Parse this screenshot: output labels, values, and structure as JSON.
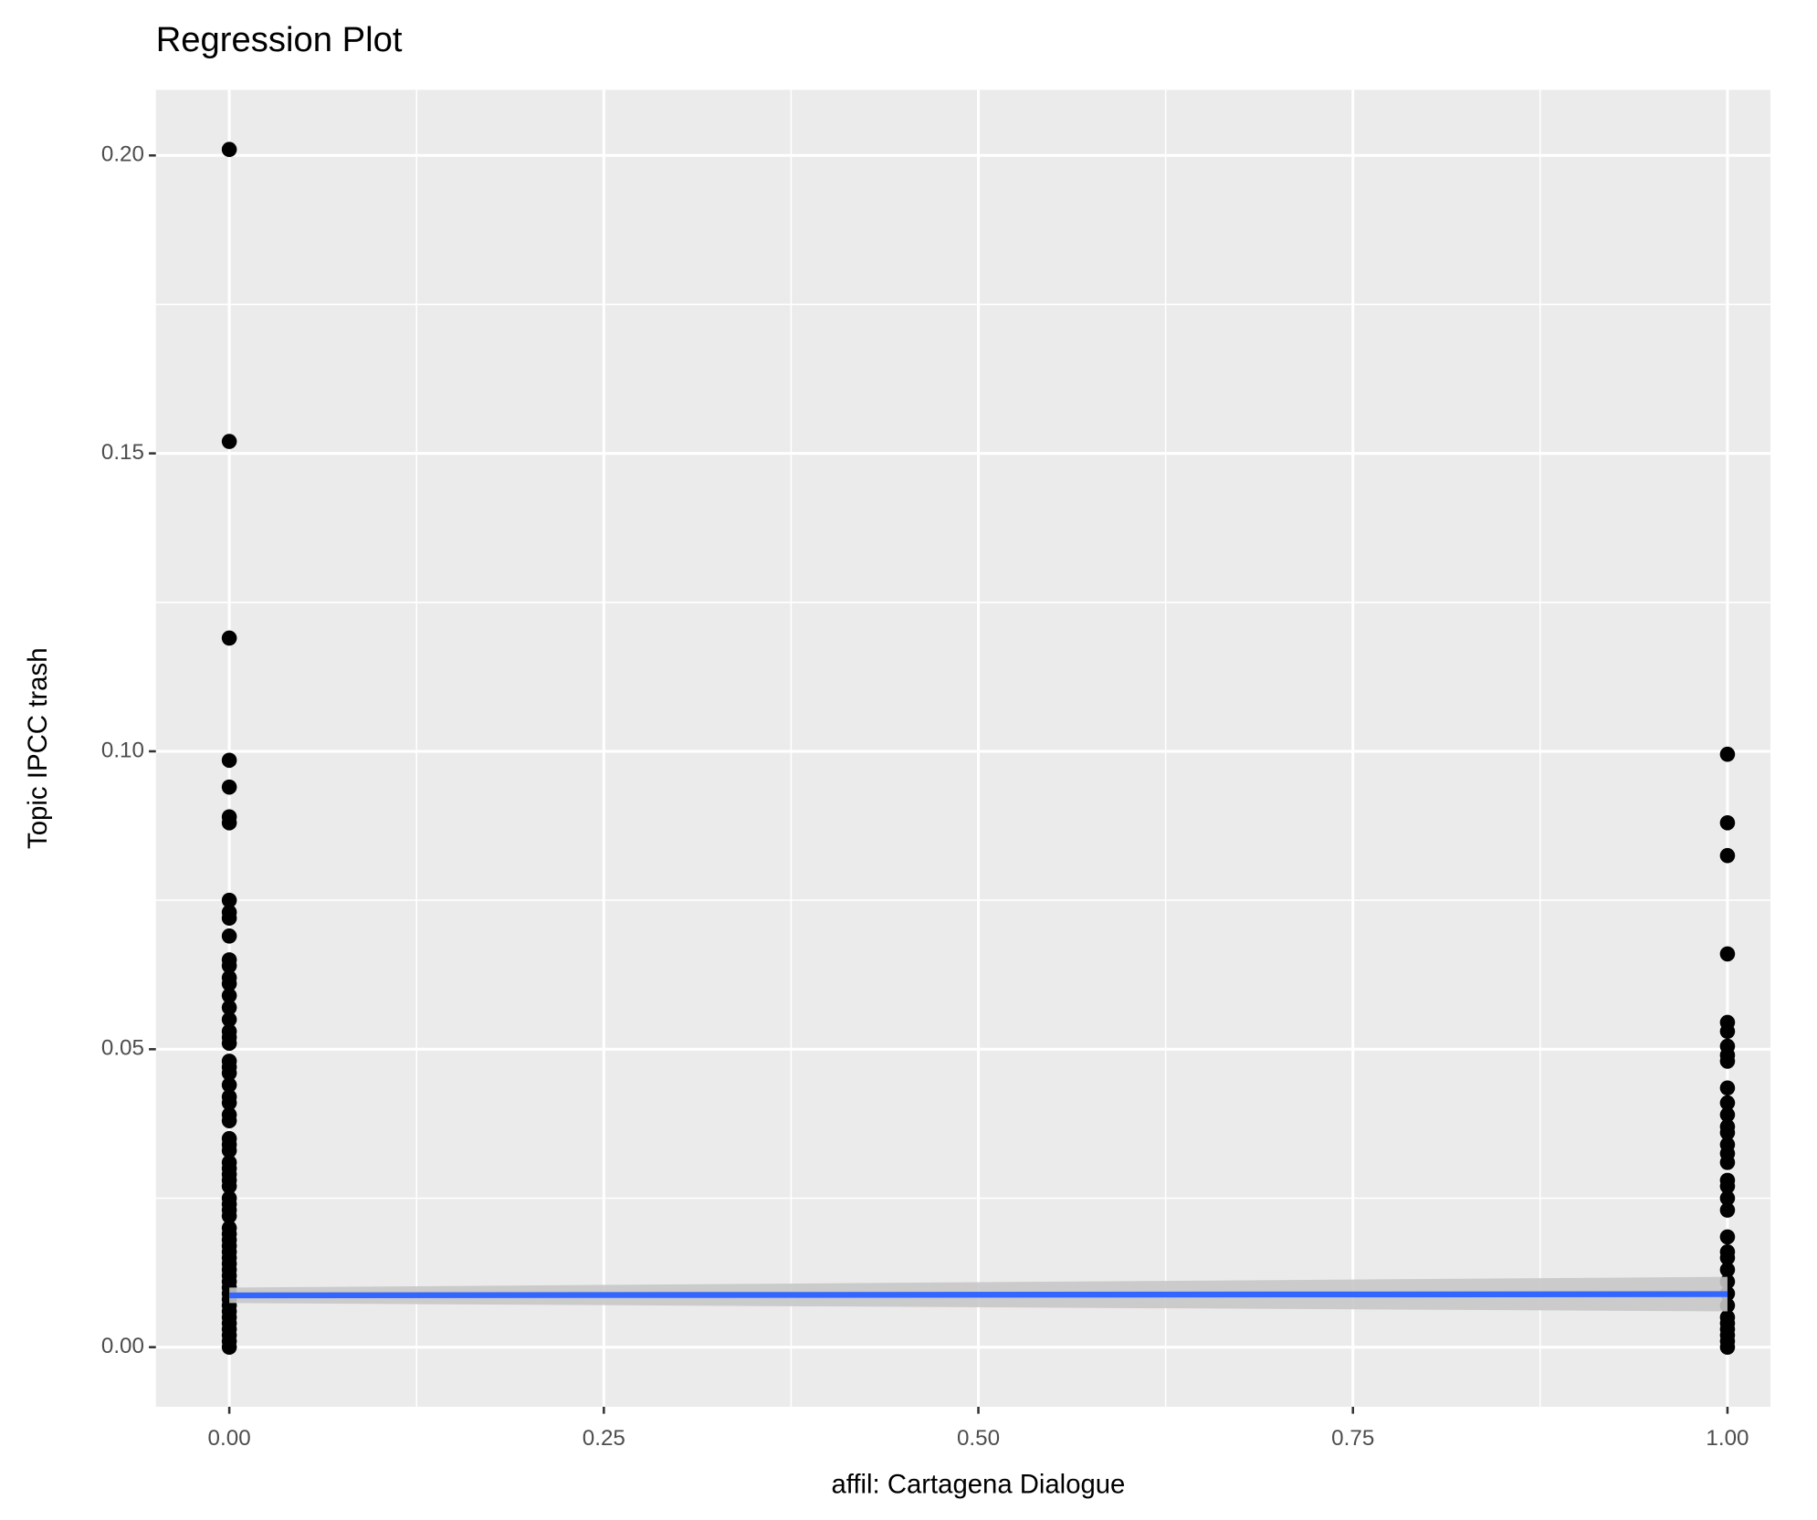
{
  "chart_data": {
    "type": "scatter",
    "title": "Regression Plot",
    "xlabel": "affil: Cartagena Dialogue",
    "ylabel": "Topic IPCC trash",
    "color": "#000000",
    "x": [
      0,
      0,
      0,
      0,
      0,
      0,
      0,
      0,
      0,
      0,
      0,
      0,
      0,
      0,
      0,
      0,
      0,
      0,
      0,
      0,
      0,
      0,
      0,
      0,
      0,
      0,
      0,
      0,
      0,
      0,
      0,
      0,
      0,
      0,
      0,
      0,
      0,
      0,
      0,
      0,
      0,
      0,
      0,
      0,
      0,
      0,
      0,
      0,
      0,
      0,
      0,
      0,
      0,
      0,
      0,
      0,
      0,
      0,
      0,
      0,
      0,
      0,
      1,
      1,
      1,
      1,
      1,
      1,
      1,
      1,
      1,
      1,
      1,
      1,
      1,
      1,
      1,
      1,
      1,
      1,
      1,
      1,
      1,
      1,
      1,
      1,
      1,
      1,
      1,
      1,
      1,
      1,
      1,
      1,
      1,
      1
    ],
    "values": [
      0.201,
      0.152,
      0.119,
      0.0985,
      0.094,
      0.089,
      0.088,
      0.075,
      0.073,
      0.072,
      0.069,
      0.065,
      0.064,
      0.062,
      0.061,
      0.059,
      0.057,
      0.055,
      0.053,
      0.052,
      0.051,
      0.048,
      0.047,
      0.046,
      0.044,
      0.042,
      0.041,
      0.039,
      0.038,
      0.035,
      0.034,
      0.033,
      0.031,
      0.03,
      0.029,
      0.028,
      0.027,
      0.025,
      0.024,
      0.023,
      0.022,
      0.02,
      0.019,
      0.018,
      0.017,
      0.016,
      0.015,
      0.014,
      0.013,
      0.012,
      0.011,
      0.01,
      0.009,
      0.008,
      0.007,
      0.006,
      0.005,
      0.004,
      0.003,
      0.002,
      0.001,
      0,
      0.0995,
      0.088,
      0.0825,
      0.066,
      0.0545,
      0.053,
      0.0505,
      0.049,
      0.048,
      0.0435,
      0.041,
      0.039,
      0.037,
      0.036,
      0.034,
      0.0325,
      0.031,
      0.028,
      0.027,
      0.025,
      0.023,
      0.0185,
      0.016,
      0.015,
      0.013,
      0.011,
      0.009,
      0.007,
      0.005,
      0.004,
      0.003,
      0.002,
      0.001,
      0
    ],
    "fit": {
      "x": [
        0,
        1
      ],
      "values": [
        0.0087,
        0.0089
      ],
      "lower": [
        0.0074,
        0.006
      ],
      "upper": [
        0.01,
        0.0118
      ],
      "color": "#3366ff",
      "band_color": "#c8c8c8"
    },
    "xlim": [
      -0.049,
      1.0287
    ],
    "ylim": [
      -0.01,
      0.211
    ],
    "xticks": [
      {
        "value": 0,
        "label": "0.00"
      },
      {
        "value": 0.25,
        "label": "0.25"
      },
      {
        "value": 0.5,
        "label": "0.50"
      },
      {
        "value": 0.75,
        "label": "0.75"
      },
      {
        "value": 1,
        "label": "1.00"
      }
    ],
    "yticks": [
      {
        "value": 0,
        "label": "0.00"
      },
      {
        "value": 0.05,
        "label": "0.05"
      },
      {
        "value": 0.1,
        "label": "0.10"
      },
      {
        "value": 0.15,
        "label": "0.15"
      },
      {
        "value": 0.2,
        "label": "0.20"
      }
    ],
    "grid": true
  }
}
